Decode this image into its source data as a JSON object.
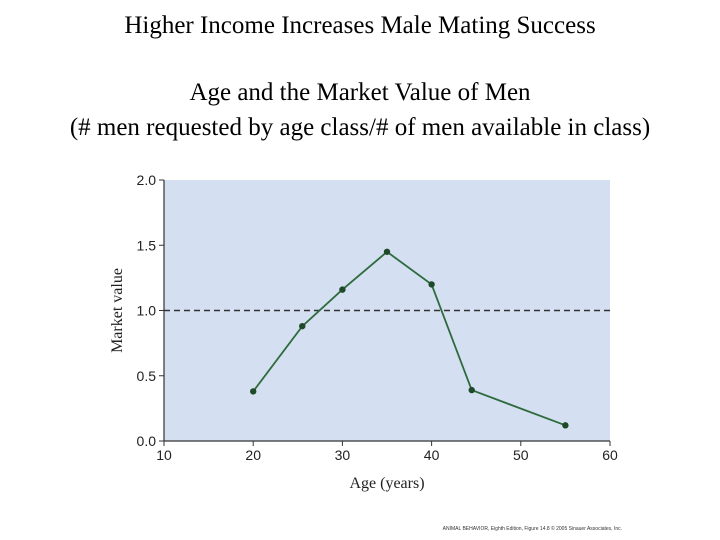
{
  "slide": {
    "title": "Higher Income Increases Male Mating Success",
    "subtitle_line1": "Age and the Market Value of Men",
    "subtitle_line2": "(# men requested by age class/# of men available in class)"
  },
  "chart_data": {
    "type": "line",
    "xlabel": "Age (years)",
    "ylabel": "Market value",
    "xlim": [
      10,
      60
    ],
    "ylim": [
      0,
      2.0
    ],
    "x_ticks": [
      "10",
      "20",
      "30",
      "40",
      "50",
      "60"
    ],
    "y_ticks": [
      "0.0",
      "0.5",
      "1.0",
      "1.5",
      "2.0"
    ],
    "series": [
      {
        "x": [
          20,
          25.5,
          30,
          35,
          40,
          44.5,
          55
        ],
        "y": [
          0.38,
          0.88,
          1.16,
          1.45,
          1.2,
          0.39,
          0.12
        ]
      }
    ],
    "reference_line": {
      "y": 1.0,
      "style": "dashed"
    },
    "grid": false,
    "plot_background": "#d4dff2",
    "line_color": "#2e6b3c",
    "marker_color": "#1f4a2a",
    "credit": "ANIMAL BEHAVIOR, Eighth Edition, Figure 14.8 © 2005 Sinauer Associates, Inc."
  }
}
